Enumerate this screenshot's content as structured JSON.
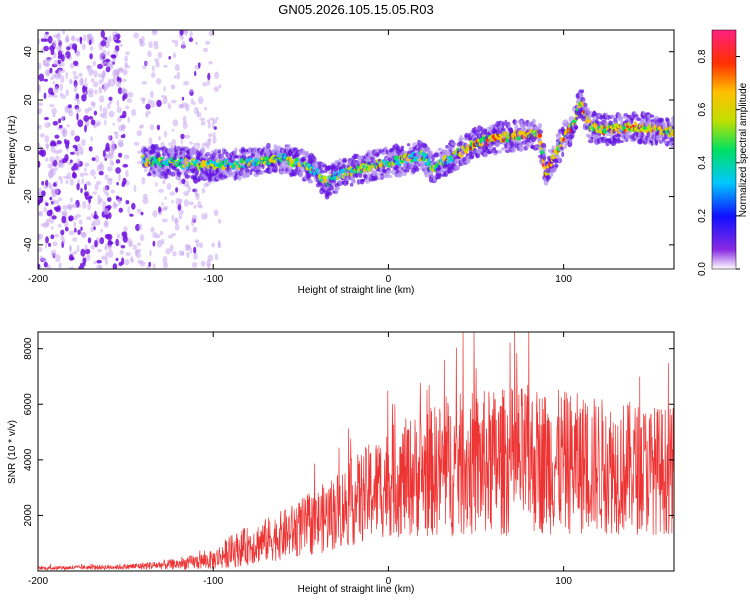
{
  "chart_data": [
    {
      "type": "heatmap",
      "title": "GN05.2026.105.15.05.R03",
      "xlabel": "Height of straight line (km)",
      "ylabel": "Frequency (Hz)",
      "xlim": [
        -200,
        163
      ],
      "ylim": [
        -50,
        49
      ],
      "xticks": [
        -200,
        -100,
        0,
        100
      ],
      "yticks": [
        -40,
        -20,
        0,
        20,
        40
      ],
      "colorbar": {
        "label": "Normalized spectral amplitude",
        "range": [
          0.0,
          0.9
        ],
        "ticks": [
          0.0,
          0.2,
          0.4,
          0.6,
          0.8
        ]
      },
      "ridge": {
        "x": [
          -140,
          -120,
          -100,
          -80,
          -60,
          -45,
          -35,
          -25,
          -15,
          0,
          20,
          25,
          40,
          50,
          60,
          70,
          80,
          86,
          90,
          95,
          100,
          105,
          110,
          115,
          120,
          130,
          140,
          150,
          160
        ],
        "y": [
          -5,
          -6,
          -7,
          -6,
          -4,
          -8,
          -14,
          -10,
          -8,
          -6,
          -3,
          -8,
          -2,
          2,
          4,
          5,
          6,
          6,
          -10,
          -3,
          4,
          9,
          19,
          9,
          8,
          8,
          9,
          8,
          7
        ]
      }
    },
    {
      "type": "line",
      "xlabel": "Height of straight line (km)",
      "ylabel": "SNR (10 * v/v)",
      "xlim": [
        -200,
        163
      ],
      "ylim": [
        0,
        8600
      ],
      "xticks": [
        -200,
        -100,
        0,
        100
      ],
      "yticks": [
        2000,
        4000,
        6000,
        8000
      ],
      "series": [
        {
          "name": "SNR",
          "color": "#ee3333",
          "envelope": {
            "x": [
              -200,
              -150,
              -120,
              -100,
              -90,
              -80,
              -60,
              -40,
              -20,
              0,
              20,
              40,
              60,
              80,
              100,
              120,
              140,
              163
            ],
            "mean": [
              100,
              150,
              250,
              400,
              700,
              900,
              1300,
              1800,
              2500,
              3200,
              3500,
              3800,
              3900,
              4000,
              3900,
              3800,
              3700,
              3600
            ],
            "spread": [
              60,
              100,
              200,
              350,
              600,
              700,
              900,
              1200,
              1600,
              2000,
              2300,
              2600,
              2700,
              2700,
              2600,
              2500,
              2400,
              2300
            ]
          }
        }
      ]
    }
  ],
  "colors": {
    "snr_line": "#ee3333",
    "axis": "#000000",
    "background": "#ffffff"
  }
}
